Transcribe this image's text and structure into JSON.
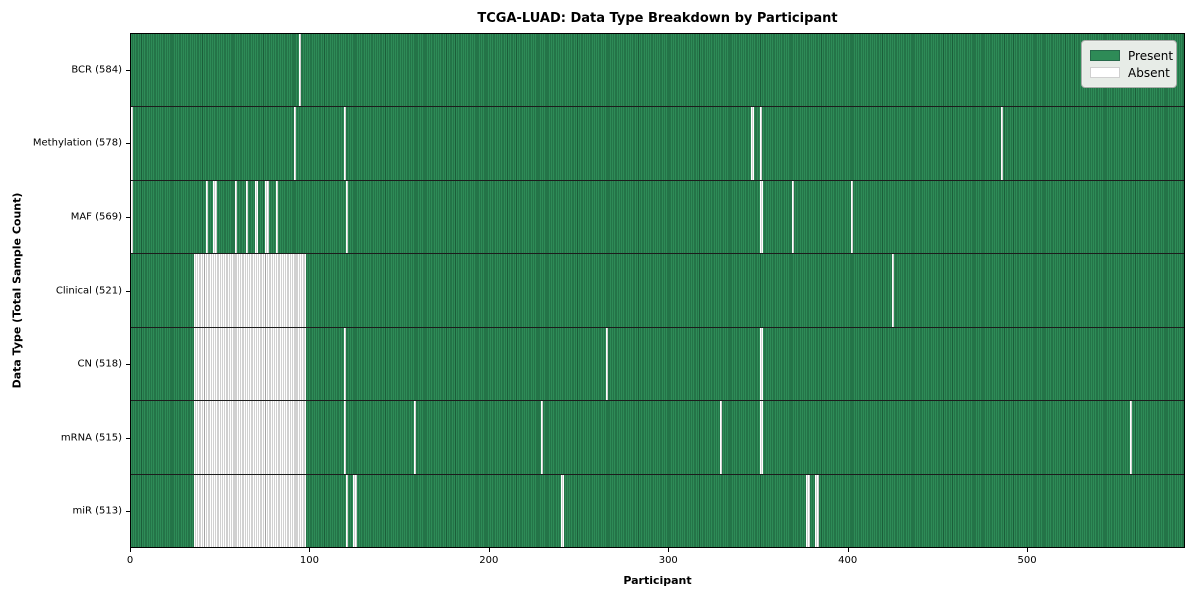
{
  "chart_data": {
    "type": "heatmap",
    "title": "TCGA-LUAD: Data Type Breakdown by Participant",
    "xlabel": "Participant",
    "ylabel": "Data Type (Total Sample Count)",
    "x_ticks": [
      0,
      100,
      200,
      300,
      400,
      500
    ],
    "x_range": [
      0,
      588
    ],
    "n_participants": 585,
    "grid": false,
    "legend_position": "upper right",
    "legend": [
      {
        "label": "Present",
        "color": "#2e8b57"
      },
      {
        "label": "Absent",
        "color": "#ffffff"
      }
    ],
    "colors": {
      "present_fill": "#2e8b57",
      "present_edge": "#1b5e3a",
      "absent_fill": "#ffffff",
      "absent_edge": "#a3a3a3",
      "frame": "#000000",
      "legend_bg": "#e7ece7"
    },
    "rows": [
      {
        "label": "BCR (584)",
        "data_type": "BCR",
        "present_count": 584,
        "absent_ranges": [
          [
            94,
            95
          ]
        ]
      },
      {
        "label": "Methylation (578)",
        "data_type": "Methylation",
        "present_count": 578,
        "absent_ranges": [
          [
            0,
            1
          ],
          [
            91,
            92
          ],
          [
            119,
            120
          ],
          [
            346,
            348
          ],
          [
            351,
            352
          ],
          [
            486,
            487
          ]
        ]
      },
      {
        "label": "MAF (569)",
        "data_type": "MAF",
        "present_count": 569,
        "absent_ranges": [
          [
            0,
            1
          ],
          [
            42,
            43
          ],
          [
            46,
            48
          ],
          [
            58,
            59
          ],
          [
            64,
            65
          ],
          [
            69,
            71
          ],
          [
            75,
            77
          ],
          [
            81,
            82
          ],
          [
            120,
            121
          ],
          [
            351,
            353
          ],
          [
            369,
            370
          ],
          [
            402,
            403
          ]
        ]
      },
      {
        "label": "Clinical (521)",
        "data_type": "Clinical",
        "present_count": 521,
        "absent_ranges": [
          [
            35,
            98
          ],
          [
            425,
            426
          ]
        ]
      },
      {
        "label": "CN (518)",
        "data_type": "CN",
        "present_count": 518,
        "absent_ranges": [
          [
            35,
            98
          ],
          [
            119,
            120
          ],
          [
            265,
            266
          ],
          [
            351,
            353
          ]
        ]
      },
      {
        "label": "mRNA (515)",
        "data_type": "mRNA",
        "present_count": 515,
        "absent_ranges": [
          [
            35,
            98
          ],
          [
            119,
            120
          ],
          [
            158,
            159
          ],
          [
            229,
            230
          ],
          [
            329,
            330
          ],
          [
            351,
            353
          ],
          [
            558,
            559
          ]
        ]
      },
      {
        "label": "miR (513)",
        "data_type": "miR",
        "present_count": 513,
        "absent_ranges": [
          [
            35,
            98
          ],
          [
            120,
            121
          ],
          [
            124,
            126
          ],
          [
            240,
            242
          ],
          [
            377,
            379
          ],
          [
            382,
            384
          ]
        ]
      }
    ]
  }
}
